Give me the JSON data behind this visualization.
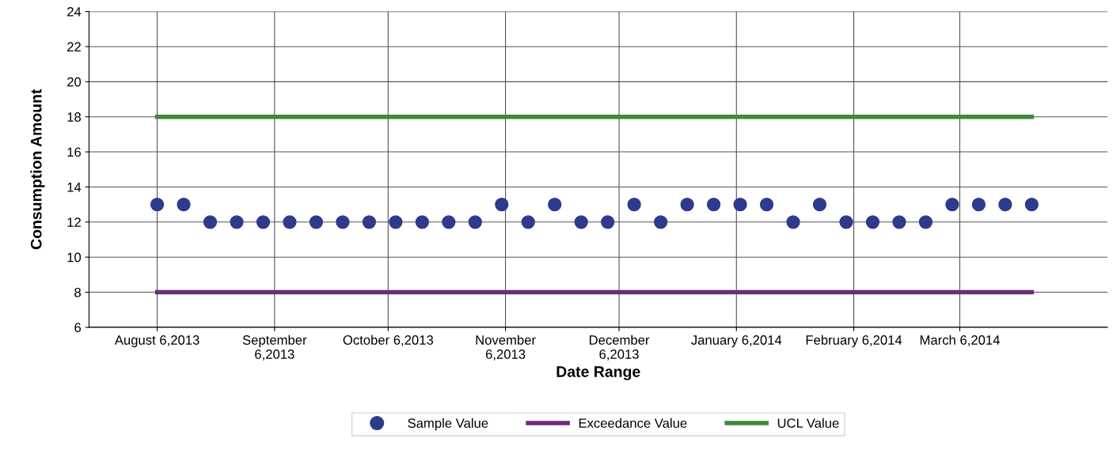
{
  "chart_data": {
    "type": "scatter",
    "xlabel": "Date Range",
    "ylabel": "Consumption Amount",
    "x": [
      "2013-08-06",
      "2013-08-13",
      "2013-08-20",
      "2013-08-27",
      "2013-09-03",
      "2013-09-10",
      "2013-09-17",
      "2013-09-24",
      "2013-10-01",
      "2013-10-08",
      "2013-10-15",
      "2013-10-22",
      "2013-10-29",
      "2013-11-05",
      "2013-11-12",
      "2013-11-19",
      "2013-11-26",
      "2013-12-03",
      "2013-12-10",
      "2013-12-17",
      "2013-12-24",
      "2013-12-31",
      "2014-01-07",
      "2014-01-14",
      "2014-01-21",
      "2014-01-28",
      "2014-02-04",
      "2014-02-11",
      "2014-02-18",
      "2014-02-25",
      "2014-03-04",
      "2014-03-11",
      "2014-03-18",
      "2014-03-25"
    ],
    "series": [
      {
        "name": "Sample Value",
        "color": "#2e3a8c",
        "marker": "circle",
        "values": [
          13,
          13,
          12,
          12,
          12,
          12,
          12,
          12,
          12,
          12,
          12,
          12,
          12,
          13,
          12,
          13,
          12,
          12,
          13,
          12,
          13,
          13,
          13,
          13,
          12,
          13,
          12,
          12,
          12,
          12,
          13,
          13,
          13,
          13
        ]
      },
      {
        "name": "Exceedance Value",
        "type": "line",
        "color": "#6b2d7a",
        "x": [
          "2013-08-06",
          "2014-03-25"
        ],
        "values": [
          8,
          8
        ]
      },
      {
        "name": "UCL Value",
        "type": "line",
        "color": "#3d8a3a",
        "x": [
          "2013-08-06",
          "2014-03-25"
        ],
        "values": [
          18,
          18
        ]
      }
    ],
    "xlim": [
      "2013-07-19",
      "2014-04-14"
    ],
    "xticks": [
      {
        "value": "2013-08-06",
        "label": "August 6,2013"
      },
      {
        "value": "2013-09-06",
        "label": "September\n6,2013"
      },
      {
        "value": "2013-10-06",
        "label": "October 6,2013"
      },
      {
        "value": "2013-11-06",
        "label": "November\n6,2013"
      },
      {
        "value": "2013-12-06",
        "label": "December\n6,2013"
      },
      {
        "value": "2014-01-06",
        "label": "January 6,2014"
      },
      {
        "value": "2014-02-06",
        "label": "February 6,2014"
      },
      {
        "value": "2014-03-06",
        "label": "March 6,2014"
      }
    ],
    "ylim": [
      6,
      24
    ],
    "yticks": [
      6,
      8,
      10,
      12,
      14,
      16,
      18,
      20,
      22,
      24
    ],
    "grid": true,
    "legend": "bottom"
  }
}
